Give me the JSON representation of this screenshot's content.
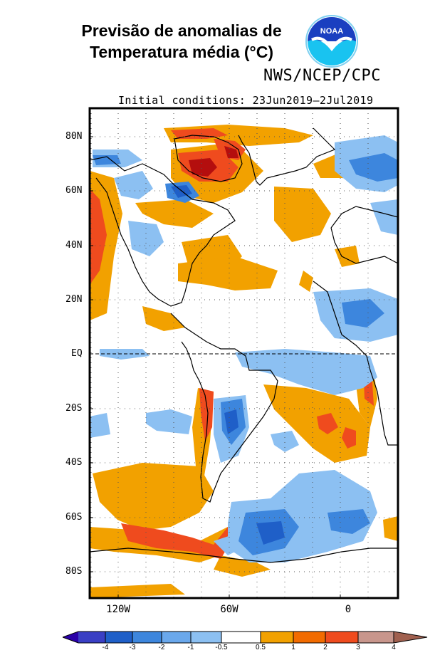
{
  "title": {
    "line1": "Previsão de anomalias de",
    "line2": "Temperatura média (°C)"
  },
  "logo": {
    "text": "NOAA",
    "icon": "noaa-logo-icon"
  },
  "agency": "NWS/NCEP/CPC",
  "initial_conditions": "Initial  conditions: 23Jun2019–2Jul2019",
  "map": {
    "lat_labels": [
      "80N",
      "60N",
      "40N",
      "20N",
      "EQ",
      "20S",
      "40S",
      "60S",
      "80S"
    ],
    "lon_labels": [
      "120W",
      "60W",
      "0"
    ],
    "equator_line": "dashed",
    "grid": "dotted"
  },
  "colorbar": {
    "tick_labels": [
      "-4",
      "-3",
      "-2",
      "-1",
      "-0.5",
      "0.5",
      "1",
      "2",
      "3",
      "4"
    ],
    "colors": [
      "#2a00a8",
      "#3a3fc4",
      "#1f5fc8",
      "#3d86dd",
      "#8cc0f2",
      "#ffffff",
      "#f2a100",
      "#ef4b1e",
      "#c41212",
      "#8c0000",
      "#c8968c",
      "#a0604f"
    ]
  }
}
